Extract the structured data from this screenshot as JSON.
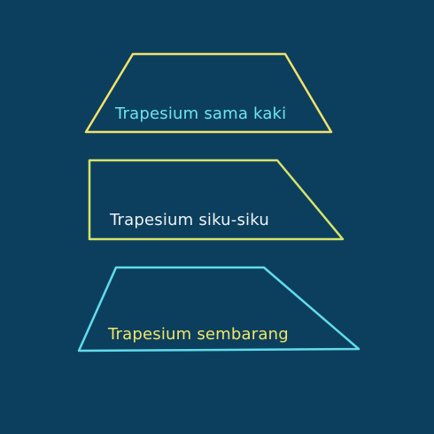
{
  "shapes": [
    {
      "label": "Trapesium sama kaki",
      "stroke_color": "#f2e26a",
      "label_color": "#6ee3f0"
    },
    {
      "label": "Trapesium siku-siku",
      "stroke_color": "#d6e46a",
      "label_color": "#eef3f4"
    },
    {
      "label": "Trapesium sembarang",
      "stroke_color": "#62dcec",
      "label_color": "#f2e66a"
    }
  ],
  "background_color": "#0c3f5e"
}
